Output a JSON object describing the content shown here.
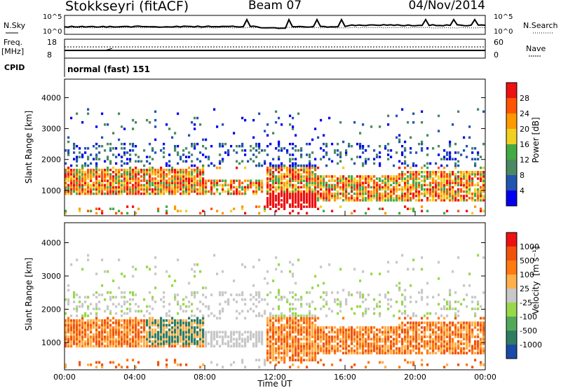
{
  "header": {
    "station": "Stokkseyri (fitACF)",
    "beam": "Beam 07",
    "date": "04/Nov/2014"
  },
  "summary_panel": {
    "nsky_label": "N.Sky",
    "nsearch_label": "N.Search",
    "noise_ticks": [
      "10^5",
      "10^0"
    ],
    "freq_label": "Freq.",
    "freq_unit": "[MHz]",
    "freq_ticks": [
      "18",
      "8"
    ],
    "nave_label": "Nave",
    "nave_ticks": [
      "60",
      "0"
    ],
    "cpid_label": "CPID",
    "cpid_value": "normal (fast) 151"
  },
  "colors": {
    "power_scale": [
      "#0000ee",
      "#2255b0",
      "#4a8a60",
      "#44aa44",
      "#f0d020",
      "#ff9900",
      "#ff5500",
      "#ee1111"
    ],
    "velocity_scale": [
      "#1a4aa6",
      "#2e7d62",
      "#55a85a",
      "#98d84a",
      "#c8c8c8",
      "#ffb04a",
      "#ff7a10",
      "#f0540a",
      "#ee1111"
    ],
    "ground_scatter": "#a8a8a8"
  },
  "chart_data": [
    {
      "type": "heatmap",
      "title": "Power",
      "ylabel": "Slant Range [km]",
      "y_ticks": [
        "1000",
        "2000",
        "3000",
        "4000"
      ],
      "ylim": [
        180,
        4600
      ],
      "xlim_hours": [
        0,
        24
      ],
      "colorbar_label": "Power [dB]",
      "colorbar_ticks": [
        "4",
        "8",
        "12",
        "16",
        "20",
        "24",
        "28"
      ]
    },
    {
      "type": "heatmap",
      "title": "Velocity",
      "ylabel": "Slant Range [km]",
      "y_ticks": [
        "1000",
        "2000",
        "3000",
        "4000"
      ],
      "ylim": [
        180,
        4600
      ],
      "xlim_hours": [
        0,
        24
      ],
      "xlabel": "Time UT",
      "x_ticks": [
        "00:00",
        "04:00",
        "08:00",
        "12:00",
        "16:00",
        "20:00",
        "00:00"
      ],
      "colorbar_label": "Velocity",
      "colorbar_unit": "[m s⁻¹]",
      "colorbar_ticks": [
        "1000",
        "500",
        "100",
        "25",
        "-25",
        "-100",
        "-500",
        "-1000"
      ]
    }
  ]
}
